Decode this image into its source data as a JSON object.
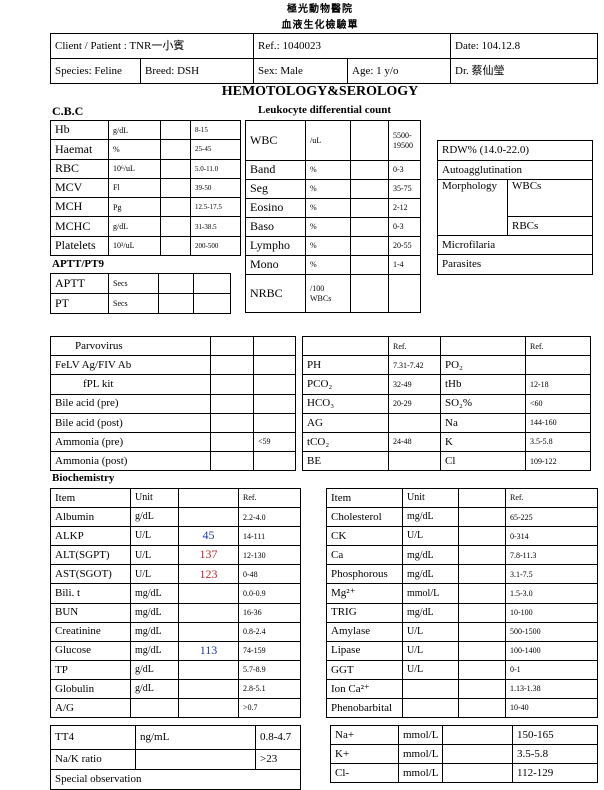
{
  "header": {
    "hospital": "極光動物醫院",
    "form": "血液生化檢驗單"
  },
  "patient_info": {
    "rows": [
      [
        "Client / Patient : TNR一小賓",
        "Ref.: 1040023",
        "Date: 104.12.8"
      ],
      [
        "Species: Feline",
        "Breed: DSH",
        "Sex: Male",
        "Age: 1 y/o",
        "Dr. 蔡仙瑩"
      ]
    ]
  },
  "title": "HEMOTOLOGY&SEROLOGY",
  "cbc": {
    "label": "C.B.C",
    "rows": [
      [
        "Hb",
        "g/dL",
        null,
        "8-15"
      ],
      [
        "Haemat",
        "%",
        null,
        "25-45"
      ],
      [
        "RBC",
        "10⁶/uL",
        null,
        "5.0-11.0"
      ],
      [
        "MCV",
        "Fl",
        null,
        "39-50"
      ],
      [
        "MCH",
        "Pg",
        null,
        "12.5-17.5"
      ],
      [
        "MCHC",
        "g/dL",
        null,
        "31-38.5"
      ],
      [
        "Platelets",
        "10³/uL",
        null,
        "200-500"
      ]
    ]
  },
  "leukocyte": {
    "label": "Leukocyte differential count",
    "rows": [
      [
        "WBC",
        "/uL",
        null,
        "5500-\n19500"
      ],
      [
        "Band",
        "%",
        null,
        "0-3"
      ],
      [
        "Seg",
        "%",
        null,
        "35-75"
      ],
      [
        "Eosino",
        "%",
        null,
        "2-12"
      ],
      [
        "Baso",
        "%",
        null,
        "0-3"
      ],
      [
        "Lympho",
        "%",
        null,
        "20-55"
      ],
      [
        "Mono",
        "%",
        null,
        "1-4"
      ],
      [
        "NRBC",
        "/100\nWBCs",
        null,
        null
      ]
    ]
  },
  "observations": {
    "rows": [
      [
        "RDW% (14.0-22.0)"
      ],
      [
        "Autoagglutination"
      ],
      [
        "Morphology",
        "WBCs"
      ],
      [
        "RBCs"
      ],
      [
        "Microfilaria"
      ],
      [
        "Parasites"
      ]
    ]
  },
  "coagulation": {
    "label": "APTT/PT9",
    "rows": [
      [
        "APTT",
        "Secs",
        null,
        null
      ],
      [
        "PT",
        "Secs",
        null,
        null
      ]
    ]
  },
  "serology": {
    "rows": [
      [
        "Parvovirus",
        null,
        null
      ],
      [
        "FeLV Ag/FIV Ab",
        null,
        null
      ],
      [
        "fPL kit",
        null,
        null
      ],
      [
        "Bile acid (pre)",
        null,
        null
      ],
      [
        "Bile acid (post)",
        null,
        null
      ],
      [
        "Ammonia (pre)",
        null,
        "<59"
      ],
      [
        "Ammonia (post)",
        null,
        null
      ]
    ]
  },
  "blood_gas": {
    "rows": [
      [
        null,
        "Ref.",
        null,
        "Ref."
      ],
      [
        "PH",
        "7.31-7.42",
        "PO₂",
        null
      ],
      [
        "PCO₂",
        "32-49",
        "tHb",
        "12-18"
      ],
      [
        "HCO₃",
        "20-29",
        "SO₂%",
        "<60"
      ],
      [
        "AG",
        null,
        "Na",
        "144-160"
      ],
      [
        "tCO₂",
        "24-48",
        "K",
        "3.5-5.8"
      ],
      [
        "BE",
        null,
        "Cl",
        "109-122"
      ]
    ]
  },
  "biochemistry": {
    "label": "Biochemistry",
    "left": {
      "rows": [
        [
          "Item",
          "Unit",
          null,
          "Ref."
        ],
        [
          "Albumin",
          "g/dL",
          null,
          "2.2-4.0"
        ],
        [
          "ALKP",
          "U/L",
          {
            "text": "45",
            "color": "#1f3aa0"
          },
          "14-111"
        ],
        [
          "ALT(SGPT)",
          "U/L",
          {
            "text": "137",
            "color": "#c0282d"
          },
          "12-130"
        ],
        [
          "AST(SGOT)",
          "U/L",
          {
            "text": "123",
            "color": "#c0282d"
          },
          "0-48"
        ],
        [
          "Bili. t",
          "mg/dL",
          null,
          "0.0-0.9"
        ],
        [
          "BUN",
          "mg/dL",
          null,
          "16-36"
        ],
        [
          "Creatinine",
          "mg/dL",
          null,
          "0.8-2.4"
        ],
        [
          "Glucose",
          "mg/dL",
          {
            "text": "113",
            "color": "#1f3aa0"
          },
          "74-159"
        ],
        [
          "TP",
          "g/dL",
          null,
          "5.7-8.9"
        ],
        [
          "Globulin",
          "g/dL",
          null,
          "2.8-5.1"
        ],
        [
          "A/G",
          null,
          null,
          ">0.7"
        ]
      ]
    },
    "right": {
      "rows": [
        [
          "Item",
          "Unit",
          null,
          "Ref."
        ],
        [
          "Cholesterol",
          "mg/dL",
          null,
          "65-225"
        ],
        [
          "CK",
          "U/L",
          null,
          "0-314"
        ],
        [
          "Ca",
          "mg/dL",
          null,
          "7.8-11.3"
        ],
        [
          "Phosphorous",
          "mg/dL",
          null,
          "3.1-7.5"
        ],
        [
          "Mg²⁺",
          "mmol/L",
          null,
          "1.5-3.0"
        ],
        [
          "TRIG",
          "mg/dL",
          null,
          "10-100"
        ],
        [
          "Amylase",
          "U/L",
          null,
          "500-1500"
        ],
        [
          "Lipase",
          "U/L",
          null,
          "100-1400"
        ],
        [
          "GGT",
          "U/L",
          null,
          "0-1"
        ],
        [
          "Ion Ca²⁺",
          null,
          null,
          "1.13-1.38"
        ],
        [
          "Phenobarbital",
          null,
          null,
          "10-40"
        ]
      ]
    }
  },
  "extra": {
    "left": {
      "rows": [
        [
          "TT4",
          "ng/mL",
          "0.8-4.7"
        ],
        [
          "Na/K ratio",
          null,
          ">23"
        ],
        [
          "Special observation"
        ]
      ]
    },
    "right": {
      "rows": [
        [
          "Na+",
          "mmol/L",
          null,
          "150-165"
        ],
        [
          "K+",
          "mmol/L",
          null,
          "3.5-5.8"
        ],
        [
          "Cl-",
          "mmol/L",
          null,
          "112-129"
        ]
      ]
    }
  }
}
